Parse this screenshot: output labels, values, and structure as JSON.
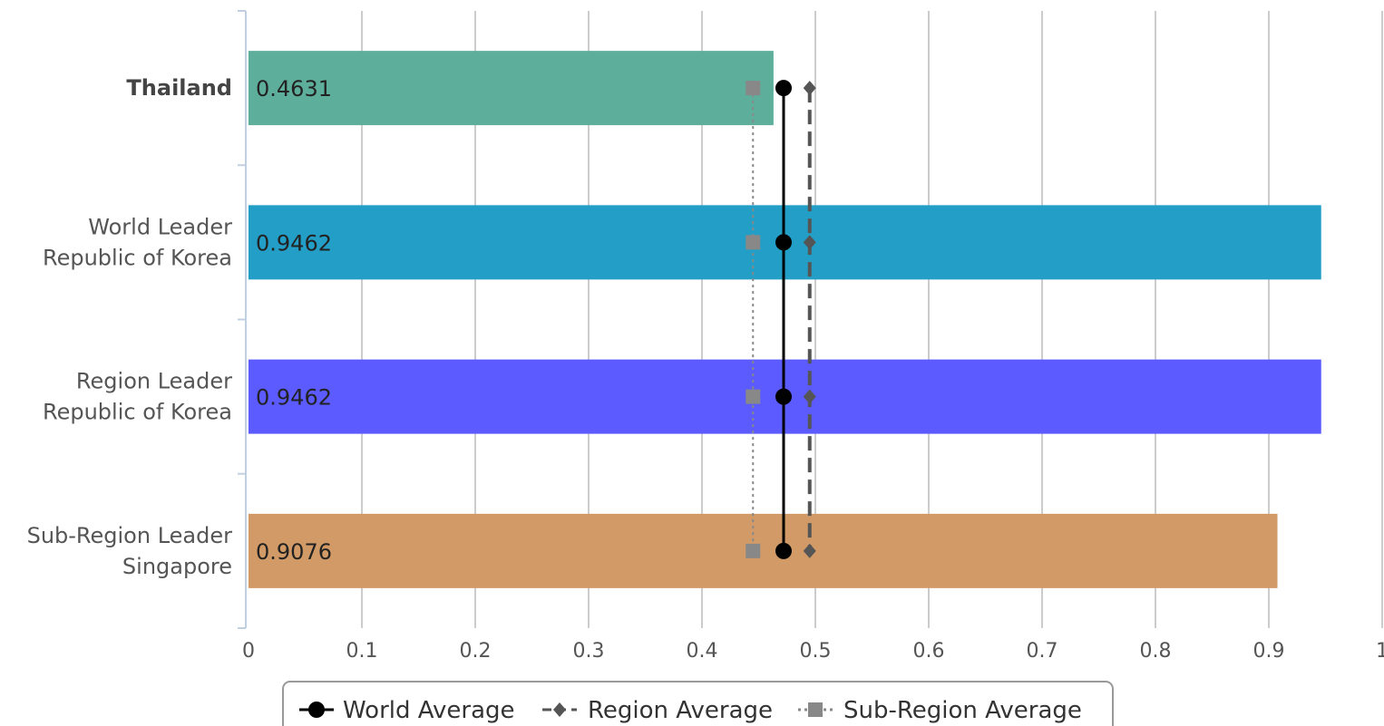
{
  "chart_data": {
    "type": "bar",
    "orientation": "horizontal",
    "categories": [
      [
        "Thailand"
      ],
      [
        "World Leader",
        "Republic of Korea"
      ],
      [
        "Region Leader",
        "Republic of Korea"
      ],
      [
        "Sub-Region Leader",
        "Singapore"
      ]
    ],
    "highlighted_category": 0,
    "values": [
      0.4631,
      0.9462,
      0.9462,
      0.9076
    ],
    "value_labels": [
      "0.4631",
      "0.9462",
      "0.9462",
      "0.9076"
    ],
    "bar_colors": [
      "#5eae9c",
      "#239fc7",
      "#5b5bff",
      "#d29a66"
    ],
    "xlim": [
      0,
      1
    ],
    "xticks": [
      "0",
      "0.1",
      "0.2",
      "0.3",
      "0.4",
      "0.5",
      "0.6",
      "0.7",
      "0.8",
      "0.9",
      "1"
    ],
    "grid": true,
    "reference_series": [
      {
        "name": "World Average",
        "value": 0.472,
        "marker": "circle",
        "line": "solid",
        "color": "#000000"
      },
      {
        "name": "Region Average",
        "value": 0.495,
        "marker": "diamond",
        "line": "dashed",
        "color": "#555555"
      },
      {
        "name": "Sub-Region Average",
        "value": 0.445,
        "marker": "square",
        "line": "dotted",
        "color": "#888888"
      }
    ],
    "legend": "bottom"
  }
}
